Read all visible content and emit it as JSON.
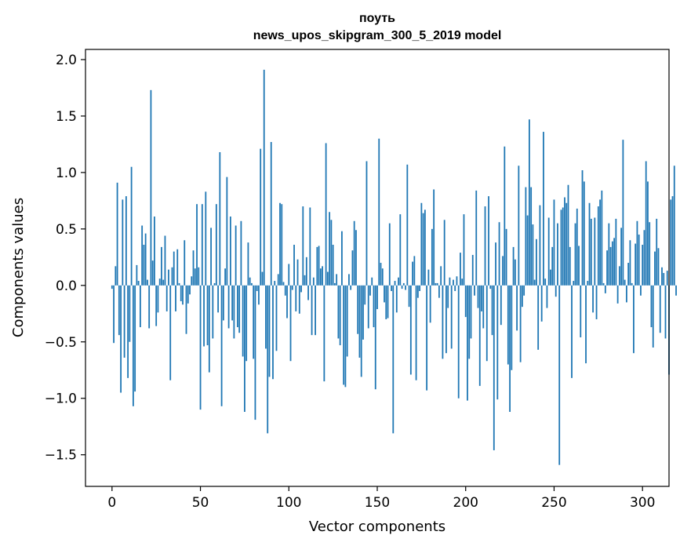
{
  "chart_data": {
    "type": "bar",
    "title_line1": "поуть",
    "title_line2": "news_upos_skipgram_300_5_2019 model",
    "xlabel": "Vector components",
    "ylabel": "Components values",
    "xlim": [
      -15,
      315
    ],
    "ylim": [
      -1.78,
      2.09
    ],
    "xticks": [
      0,
      50,
      100,
      150,
      200,
      250,
      300
    ],
    "xtick_labels": [
      "0",
      "50",
      "100",
      "150",
      "200",
      "250",
      "300"
    ],
    "yticks": [
      -1.5,
      -1.0,
      -0.5,
      0.0,
      0.5,
      1.0,
      1.5,
      2.0
    ],
    "ytick_labels": [
      "−1.5",
      "−1.0",
      "−0.5",
      "0.0",
      "0.5",
      "1.0",
      "1.5",
      "2.0"
    ],
    "bar_color": "#1f77b4",
    "bar_width": 0.8,
    "values": [
      -0.03,
      -0.51,
      0.17,
      0.91,
      -0.44,
      -0.95,
      0.76,
      -0.64,
      0.79,
      -0.82,
      -0.5,
      1.05,
      -1.07,
      -0.94,
      0.18,
      0.04,
      -0.37,
      0.53,
      0.36,
      0.46,
      0.05,
      -0.38,
      1.73,
      0.22,
      0.61,
      -0.36,
      -0.24,
      0.06,
      0.34,
      0.05,
      0.44,
      -0.23,
      0.14,
      -0.84,
      0.16,
      0.3,
      -0.23,
      0.32,
      0.02,
      -0.14,
      -0.17,
      0.4,
      -0.43,
      -0.16,
      -0.08,
      0.08,
      0.31,
      0.15,
      0.72,
      0.16,
      -1.1,
      0.72,
      -0.54,
      0.83,
      -0.53,
      -0.77,
      0.51,
      -0.47,
      0.02,
      0.72,
      -0.24,
      1.18,
      -1.07,
      -0.31,
      0.15,
      0.96,
      -0.38,
      0.61,
      -0.31,
      -0.47,
      0.53,
      -0.37,
      -0.42,
      0.57,
      -0.63,
      -1.12,
      -0.67,
      0.38,
      0.07,
      0.02,
      -0.65,
      -1.19,
      -0.05,
      -0.17,
      1.21,
      0.12,
      1.91,
      -0.56,
      -1.31,
      -0.81,
      1.27,
      -0.83,
      0.04,
      -0.58,
      0.1,
      0.73,
      0.72,
      0.03,
      -0.09,
      -0.29,
      0.19,
      -0.67,
      -0.04,
      0.36,
      -0.23,
      0.23,
      -0.25,
      -0.06,
      0.7,
      0.09,
      0.25,
      -0.13,
      0.69,
      -0.44,
      0.07,
      -0.44,
      0.34,
      0.35,
      0.15,
      0.17,
      -0.85,
      1.26,
      0.12,
      0.65,
      0.58,
      0.36,
      0.02,
      0.1,
      -0.47,
      -0.53,
      0.48,
      -0.88,
      -0.9,
      -0.63,
      0.1,
      -0.04,
      0.31,
      0.57,
      0.49,
      -0.43,
      -0.64,
      -0.81,
      -0.48,
      -0.17,
      1.1,
      -0.38,
      -0.09,
      0.07,
      -0.37,
      -0.92,
      -0.21,
      1.3,
      0.2,
      0.15,
      -0.15,
      -0.3,
      -0.29,
      0.55,
      -0.05,
      -1.31,
      0.04,
      -0.24,
      0.07,
      0.63,
      -0.03,
      0.02,
      -0.04,
      1.07,
      -0.19,
      -0.79,
      0.21,
      0.26,
      -0.84,
      -0.11,
      -0.05,
      0.73,
      0.64,
      0.67,
      -0.93,
      0.14,
      -0.33,
      0.5,
      0.85,
      0.02,
      0.02,
      -0.11,
      0.17,
      -0.65,
      0.58,
      -0.6,
      -0.2,
      0.07,
      -0.56,
      0.05,
      -0.05,
      0.08,
      -1.0,
      0.29,
      0.06,
      0.63,
      -0.28,
      -1.02,
      -0.65,
      -0.47,
      0.27,
      -0.09,
      0.84,
      -0.2,
      -0.89,
      -0.23,
      -0.38,
      0.7,
      -0.67,
      0.79,
      -0.03,
      -0.44,
      -1.46,
      0.38,
      -1.01,
      0.56,
      -0.35,
      0.26,
      1.23,
      0.5,
      -0.7,
      -1.12,
      -0.75,
      0.34,
      0.23,
      -0.4,
      1.06,
      -0.68,
      -0.19,
      -0.09,
      0.87,
      0.62,
      1.47,
      0.87,
      0.54,
      0.05,
      0.41,
      -0.57,
      0.71,
      -0.32,
      1.36,
      0.06,
      -0.2,
      0.6,
      0.14,
      0.34,
      0.76,
      -0.1,
      0.55,
      -1.59,
      0.67,
      0.69,
      0.78,
      0.73,
      0.89,
      0.34,
      -0.82,
      0.04,
      0.55,
      0.68,
      0.35,
      -0.46,
      1.02,
      0.92,
      -0.69,
      0.04,
      0.73,
      0.59,
      -0.24,
      0.6,
      -0.3,
      0.7,
      0.76,
      0.84,
      0.02,
      -0.07,
      0.31,
      0.55,
      0.34,
      0.39,
      0.42,
      0.59,
      -0.16,
      0.17,
      0.51,
      1.29,
      0.05,
      -0.15,
      0.2,
      0.4,
      0.02,
      -0.6,
      0.37,
      0.57,
      0.45,
      -0.09,
      0.36,
      0.49,
      1.1,
      0.92,
      0.56,
      -0.37,
      -0.55,
      0.3,
      0.59,
      0.33,
      -0.42,
      0.16,
      0.11,
      -0.47,
      0.13,
      -0.79,
      0.76,
      0.79,
      1.06,
      -0.09
    ]
  }
}
